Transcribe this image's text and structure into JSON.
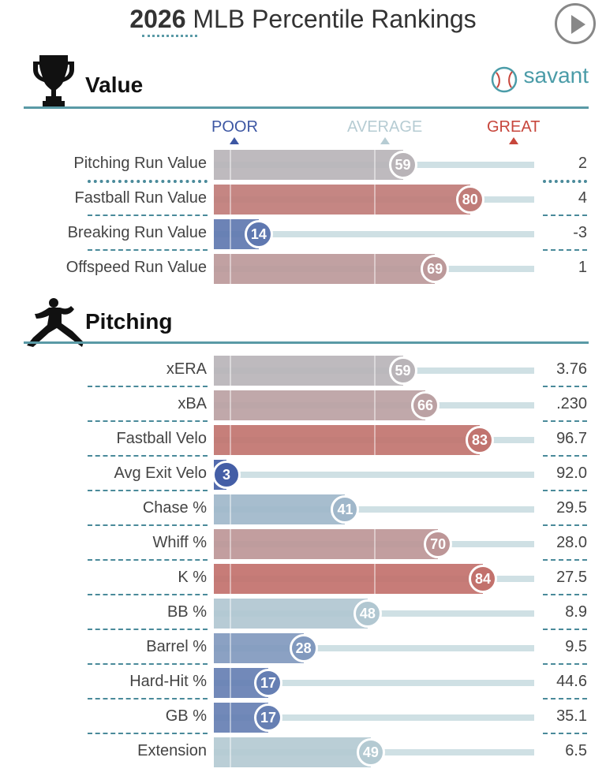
{
  "header": {
    "year": "2026",
    "title": "MLB Percentile Rankings"
  },
  "brand": {
    "name": "savant"
  },
  "scale": {
    "poor": "POOR",
    "average": "AVERAGE",
    "great": "GREAT"
  },
  "colors": {
    "accent": "#5a9aa6",
    "poor": "#3d57a3",
    "average": "#b6ccd3",
    "great": "#c7463c"
  },
  "icons": {
    "value": "trophy-icon",
    "pitching": "pitcher-icon",
    "brand": "baseball-icon",
    "play": "play-icon"
  },
  "sections": [
    {
      "title": "Value",
      "rows": [
        {
          "label": "Pitching Run Value",
          "percentile": 59,
          "value": "2"
        },
        {
          "label": "Fastball Run Value",
          "percentile": 80,
          "value": "4"
        },
        {
          "label": "Breaking Run Value",
          "percentile": 14,
          "value": "-3"
        },
        {
          "label": "Offspeed Run Value",
          "percentile": 69,
          "value": "1"
        }
      ]
    },
    {
      "title": "Pitching",
      "rows": [
        {
          "label": "xERA",
          "percentile": 59,
          "value": "3.76"
        },
        {
          "label": "xBA",
          "percentile": 66,
          "value": ".230"
        },
        {
          "label": "Fastball Velo",
          "percentile": 83,
          "value": "96.7"
        },
        {
          "label": "Avg Exit Velo",
          "percentile": 3,
          "value": "92.0"
        },
        {
          "label": "Chase %",
          "percentile": 41,
          "value": "29.5"
        },
        {
          "label": "Whiff %",
          "percentile": 70,
          "value": "28.0"
        },
        {
          "label": "K %",
          "percentile": 84,
          "value": "27.5"
        },
        {
          "label": "BB %",
          "percentile": 48,
          "value": "8.9"
        },
        {
          "label": "Barrel %",
          "percentile": 28,
          "value": "9.5"
        },
        {
          "label": "Hard-Hit %",
          "percentile": 17,
          "value": "44.6"
        },
        {
          "label": "GB %",
          "percentile": 17,
          "value": "35.1"
        },
        {
          "label": "Extension",
          "percentile": 49,
          "value": "6.5"
        }
      ]
    }
  ],
  "chart_data": {
    "type": "bar",
    "title": "2026 MLB Percentile Rankings",
    "xlim": [
      0,
      100
    ],
    "categories": [
      "Pitching Run Value",
      "Fastball Run Value",
      "Breaking Run Value",
      "Offspeed Run Value",
      "xERA",
      "xBA",
      "Fastball Velo",
      "Avg Exit Velo",
      "Chase %",
      "Whiff %",
      "K %",
      "BB %",
      "Barrel %",
      "Hard-Hit %",
      "GB %",
      "Extension"
    ],
    "values": [
      59,
      80,
      14,
      69,
      59,
      66,
      83,
      3,
      41,
      70,
      84,
      48,
      28,
      17,
      17,
      49
    ],
    "stat_values": [
      "2",
      "4",
      "-3",
      "1",
      "3.76",
      ".230",
      "96.7",
      "92.0",
      "29.5",
      "28.0",
      "27.5",
      "8.9",
      "9.5",
      "44.6",
      "35.1",
      "6.5"
    ]
  }
}
